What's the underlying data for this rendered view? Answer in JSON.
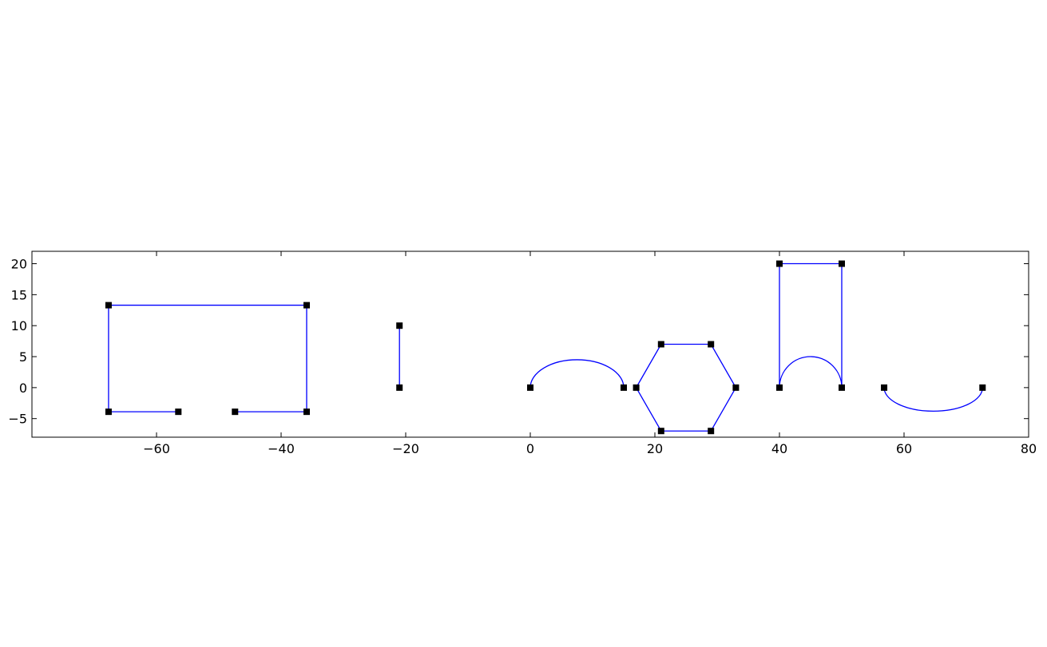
{
  "chart_data": {
    "type": "line",
    "title": "",
    "xlabel": "",
    "ylabel": "",
    "xlim": [
      -80,
      80
    ],
    "ylim": [
      -8,
      22
    ],
    "xticks": [
      -60,
      -40,
      -20,
      0,
      20,
      40,
      60,
      80
    ],
    "yticks": [
      -5,
      0,
      5,
      10,
      15,
      20
    ],
    "xtick_labels": [
      "−60",
      "−40",
      "−20",
      "0",
      "20",
      "40",
      "60",
      "80"
    ],
    "ytick_labels": [
      "−5",
      "0",
      "5",
      "10",
      "15",
      "20"
    ],
    "grid": false,
    "legend": false,
    "line_color": "#0000ff",
    "marker_color": "#000000",
    "marker": "square",
    "series": [
      {
        "kind": "polyline",
        "points": [
          [
            -56.5,
            -3.9
          ],
          [
            -67.7,
            -3.9
          ],
          [
            -67.7,
            13.3
          ],
          [
            -35.9,
            13.3
          ],
          [
            -35.9,
            -3.9
          ],
          [
            -47.4,
            -3.9
          ]
        ]
      },
      {
        "kind": "polyline",
        "points": [
          [
            -21.0,
            10.0
          ],
          [
            -21.0,
            0.0
          ]
        ]
      },
      {
        "kind": "arc",
        "from": [
          0.0,
          0.0
        ],
        "to": [
          15.0,
          0.0
        ],
        "peak_y": 4.5
      },
      {
        "kind": "polyline",
        "closed": true,
        "points": [
          [
            17.0,
            0.0
          ],
          [
            21.0,
            7.0
          ],
          [
            29.0,
            7.0
          ],
          [
            33.0,
            0.0
          ],
          [
            29.0,
            -7.0
          ],
          [
            21.0,
            -7.0
          ]
        ]
      },
      {
        "kind": "polyline",
        "points": [
          [
            40.0,
            0.0
          ],
          [
            40.0,
            20.0
          ],
          [
            50.0,
            20.0
          ],
          [
            50.0,
            0.0
          ]
        ]
      },
      {
        "kind": "arc",
        "from": [
          40.0,
          0.0
        ],
        "to": [
          50.0,
          0.0
        ],
        "peak_y": 5.0,
        "markers": false
      },
      {
        "kind": "arc",
        "from": [
          56.8,
          0.0
        ],
        "to": [
          72.6,
          0.0
        ],
        "peak_y": -3.8
      }
    ]
  }
}
